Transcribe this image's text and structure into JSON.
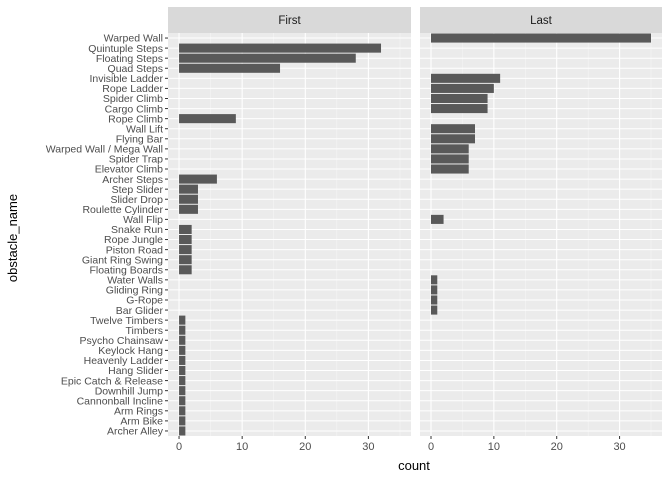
{
  "chart_data": {
    "type": "bar",
    "orientation": "horizontal",
    "facets": [
      "First",
      "Last"
    ],
    "xlabel": "count",
    "ylabel": "obstacle_name",
    "xlim": [
      -1.75,
      36.75
    ],
    "x_ticks": [
      0,
      10,
      20,
      30
    ],
    "grid": true,
    "categories": [
      "Warped Wall",
      "Quintuple Steps",
      "Floating Steps",
      "Quad Steps",
      "Invisible Ladder",
      "Rope Ladder",
      "Spider Climb",
      "Cargo Climb",
      "Rope Climb",
      "Wall Lift",
      "Flying Bar",
      "Warped Wall / Mega Wall",
      "Spider Trap",
      "Elevator Climb",
      "Archer Steps",
      "Step Slider",
      "Slider Drop",
      "Roulette Cylinder",
      "Wall Flip",
      "Snake Run",
      "Rope Jungle",
      "Piston Road",
      "Giant Ring Swing",
      "Floating Boards",
      "Water Walls",
      "Gliding Ring",
      "G-Rope",
      "Bar Glider",
      "Twelve Timbers",
      "Timbers",
      "Psycho Chainsaw",
      "Keylock Hang",
      "Heavenly Ladder",
      "Hang Slider",
      "Epic Catch & Release",
      "Downhill Jump",
      "Cannonball Incline",
      "Arm Rings",
      "Arm Bike",
      "Archer Alley"
    ],
    "series": [
      {
        "name": "First",
        "values": [
          0,
          32,
          28,
          16,
          0,
          0,
          0,
          0,
          9,
          0,
          0,
          0,
          0,
          0,
          6,
          3,
          3,
          3,
          0,
          2,
          2,
          2,
          2,
          2,
          0,
          0,
          0,
          0,
          1,
          1,
          1,
          1,
          1,
          1,
          1,
          1,
          1,
          1,
          1,
          1
        ]
      },
      {
        "name": "Last",
        "values": [
          35,
          0,
          0,
          0,
          11,
          10,
          9,
          9,
          0,
          7,
          7,
          6,
          6,
          6,
          0,
          0,
          0,
          0,
          2,
          0,
          0,
          0,
          0,
          0,
          1,
          1,
          1,
          1,
          0,
          0,
          0,
          0,
          0,
          0,
          0,
          0,
          0,
          0,
          0,
          0
        ]
      }
    ]
  },
  "colors": {
    "bar": "#595959",
    "panel_bg": "#ebebeb",
    "grid_major": "#ffffff",
    "grid_minor": "#f5f5f5",
    "strip_bg": "#d9d9d9",
    "tick_text": "#4d4d4d"
  }
}
